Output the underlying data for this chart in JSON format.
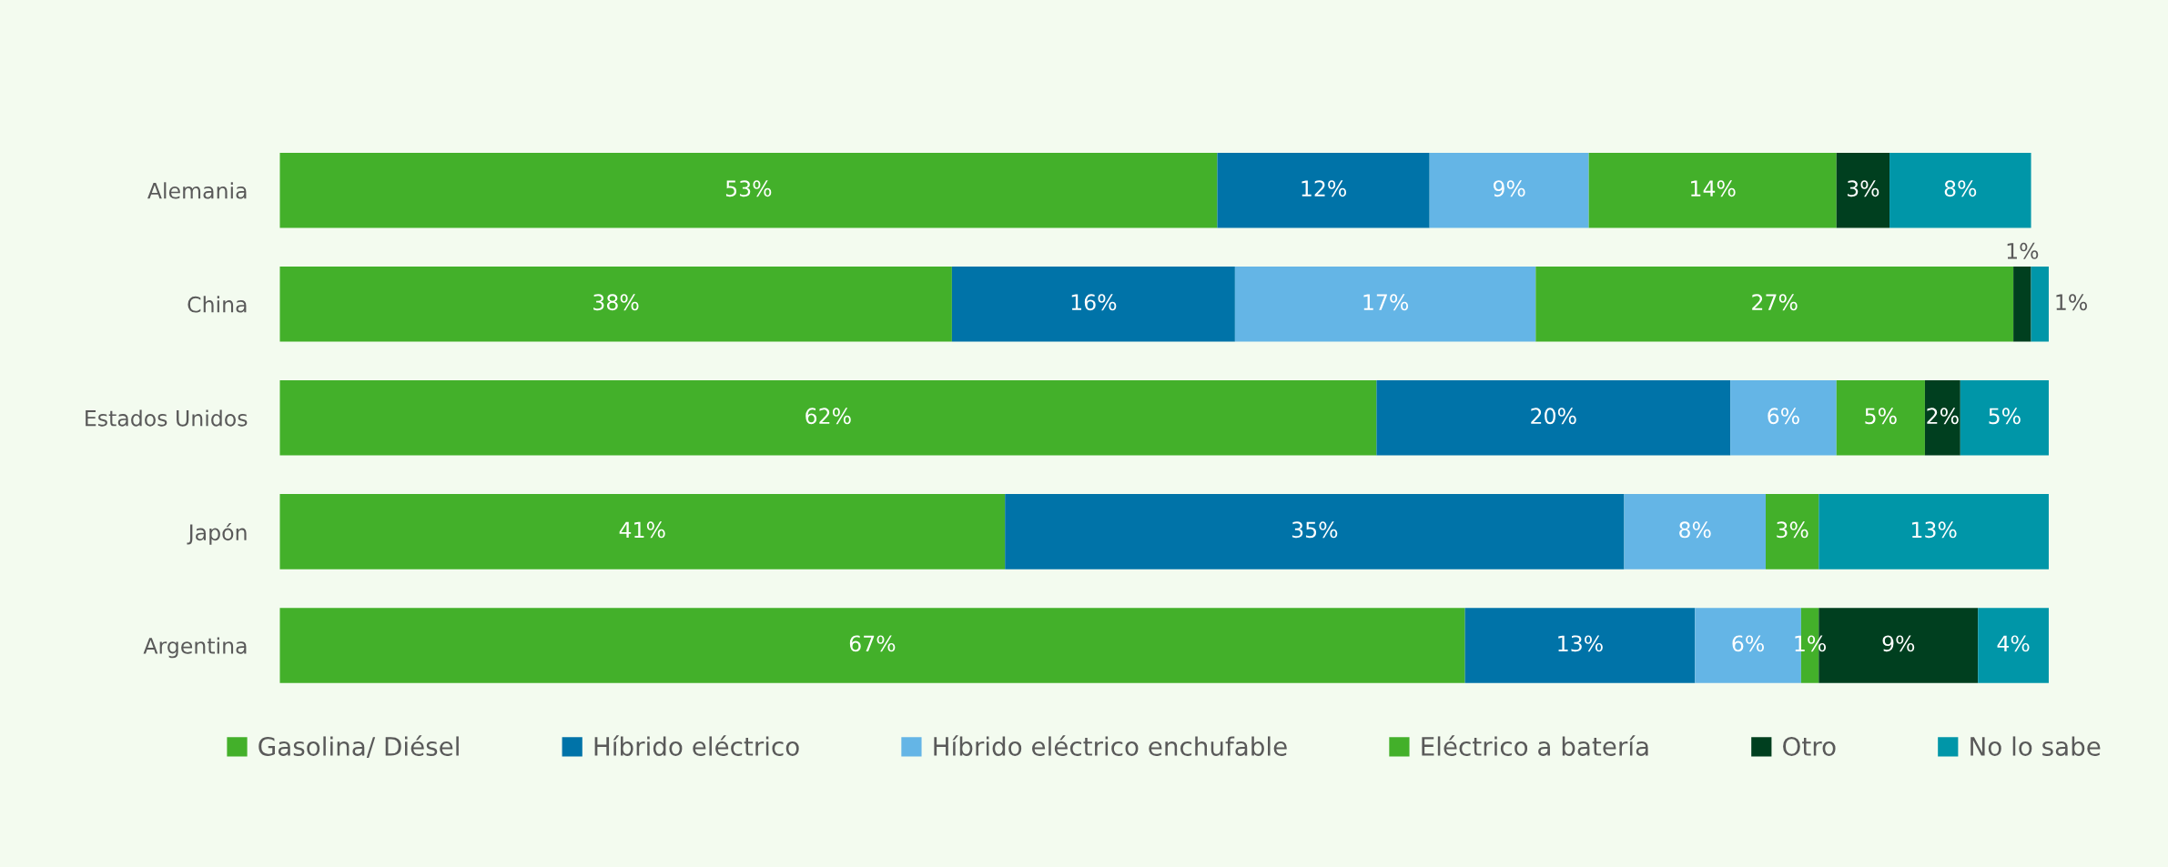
{
  "chart_data": {
    "type": "bar",
    "orientation": "horizontal",
    "stacked": true,
    "legend": "bottom",
    "grid": false,
    "categories": [
      "Alemania",
      "China",
      "Estados Unidos",
      "Japón",
      "Argentina"
    ],
    "series": [
      {
        "name": "Gasolina/ Diésel",
        "color": "#43b02a",
        "values": [
          53,
          38,
          62,
          41,
          67
        ],
        "value_labels": [
          "53%",
          "38%",
          "62%",
          "41%",
          "67%"
        ]
      },
      {
        "name": "Híbrido eléctrico",
        "color": "#0073a8",
        "values": [
          12,
          16,
          20,
          35,
          13
        ],
        "value_labels": [
          "12%",
          "16%",
          "20%",
          "35%",
          "13%"
        ]
      },
      {
        "name": "Híbrido eléctrico enchufable",
        "color": "#64b5e6",
        "values": [
          9,
          17,
          6,
          8,
          6
        ],
        "value_labels": [
          "9%",
          "17%",
          "6%",
          "8%",
          "6%"
        ]
      },
      {
        "name": "Eléctrico a batería",
        "color": "#43b02a",
        "values": [
          14,
          27,
          5,
          3,
          1
        ],
        "value_labels": [
          "14%",
          "27%",
          "5%",
          "3%",
          "1%"
        ]
      },
      {
        "name": "Otro",
        "color": "#003f1f",
        "values": [
          3,
          1,
          2,
          null,
          9
        ],
        "value_labels": [
          "3%",
          "1%",
          "2%",
          null,
          "9%"
        ]
      },
      {
        "name": "No lo sabe",
        "color": "#0096a8",
        "values": [
          8,
          1,
          5,
          13,
          4
        ],
        "value_labels": [
          "8%",
          "1%",
          "5%",
          "13%",
          "4%"
        ]
      }
    ]
  }
}
